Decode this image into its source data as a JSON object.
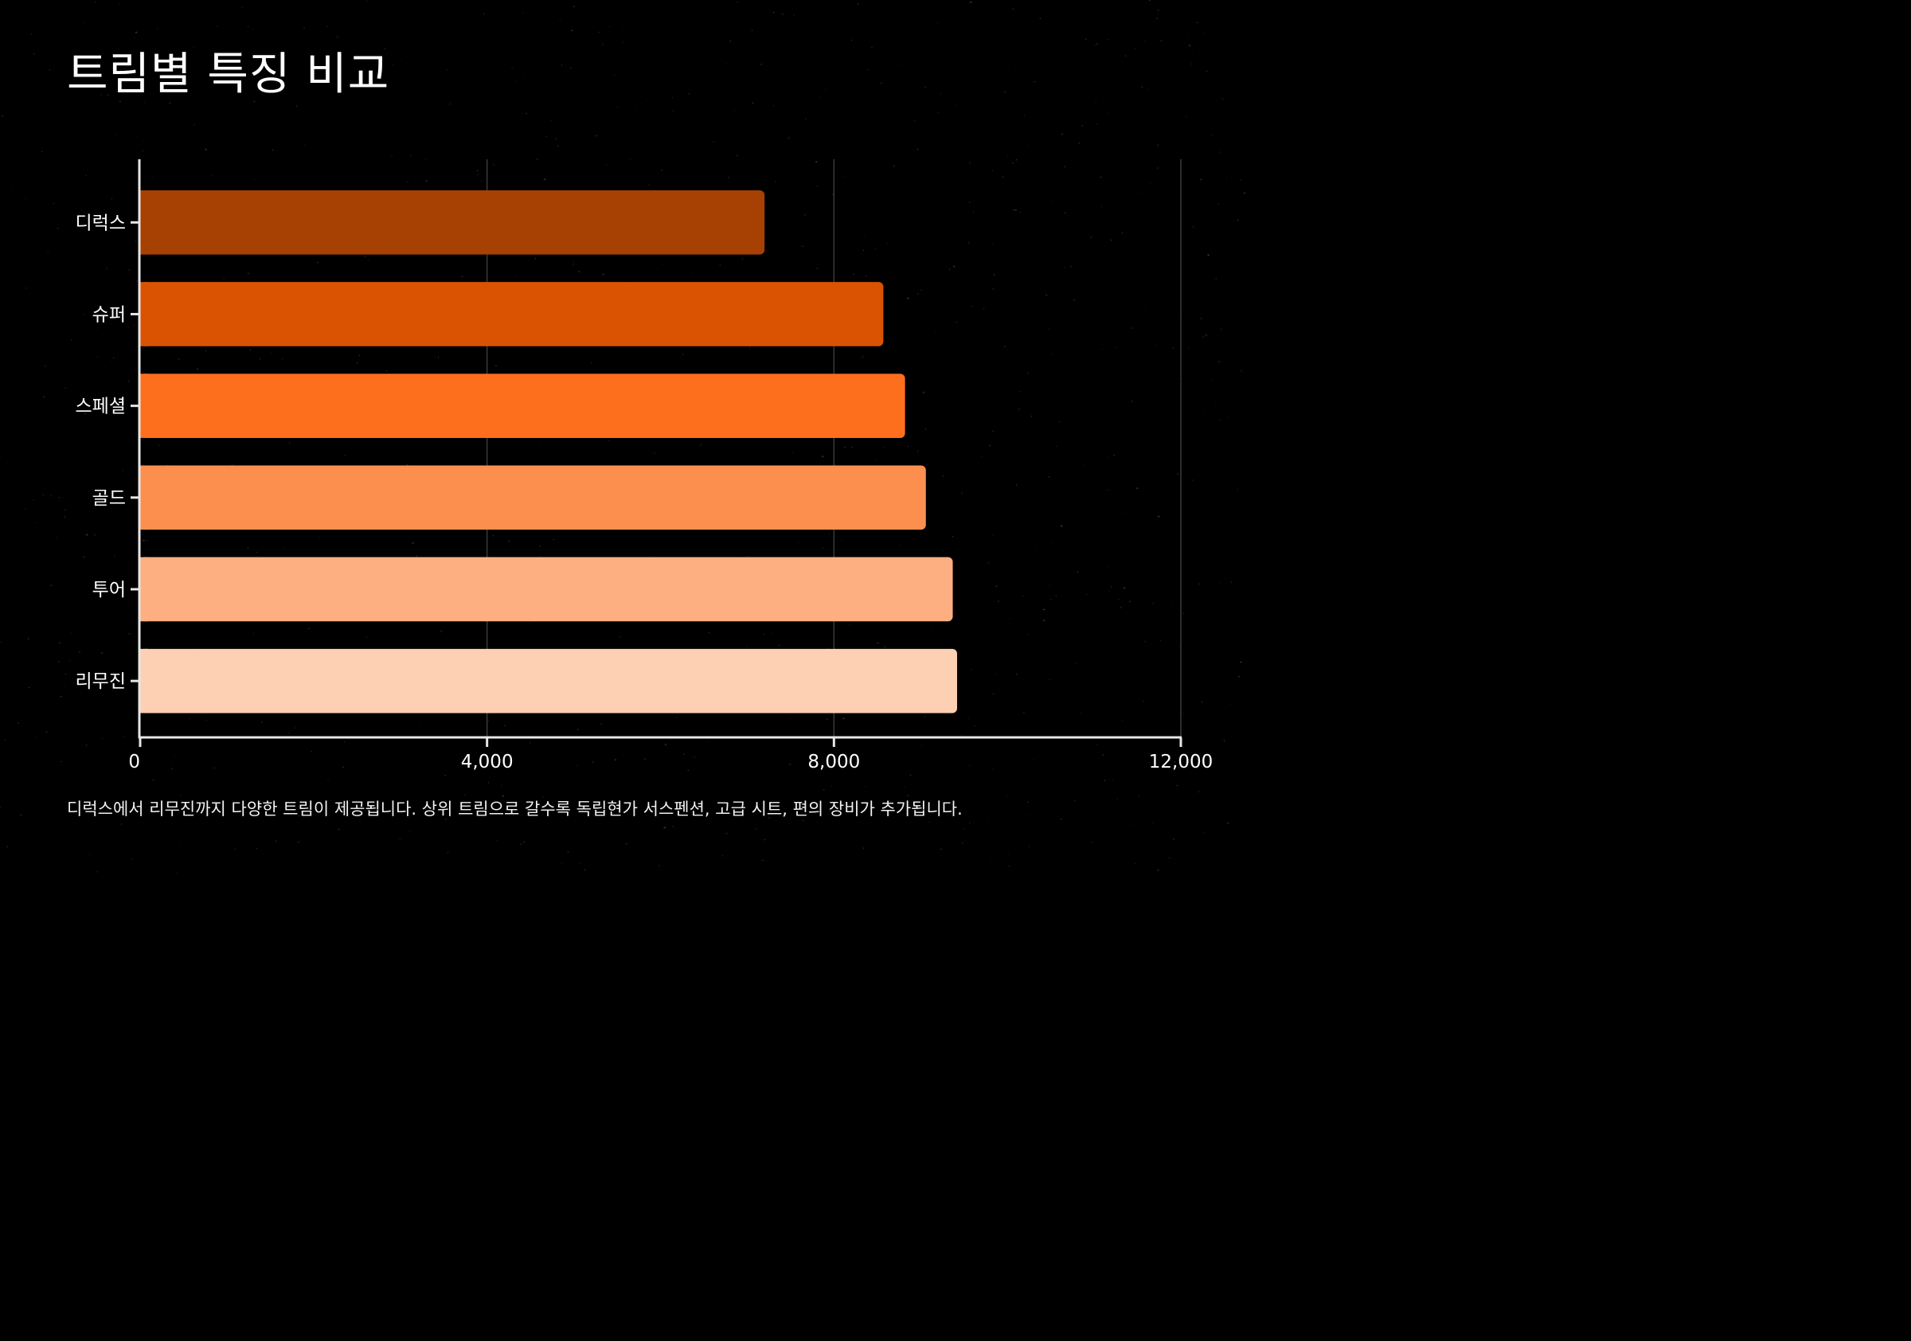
{
  "title": "트림별 특징 비교",
  "caption": "디럭스에서 리무진까지 다양한 트림이 제공됩니다. 상위 트림으로 갈수록 독립현가 서스펜션, 고급 시트, 편의 장비가 추가됩니다.",
  "colors": {
    "background": "#000000",
    "axis": "#e6e6e6",
    "grid": "#3a3a3a",
    "text": "#ffffff"
  },
  "chart_data": {
    "type": "bar",
    "orientation": "horizontal",
    "categories": [
      "디럭스",
      "슈퍼",
      "스페셜",
      "골드",
      "투어",
      "리무진"
    ],
    "values": [
      7200,
      8570,
      8820,
      9060,
      9370,
      9420
    ],
    "colors": [
      "#a64003",
      "#d95303",
      "#fd6f1c",
      "#fd8f4e",
      "#fdaf81",
      "#fed0b3"
    ],
    "xlim": [
      0,
      12000
    ],
    "xticks": [
      0,
      4000,
      8000,
      12000
    ],
    "xtick_labels": [
      "0",
      "4,000",
      "8,000",
      "12,000"
    ],
    "grid": "vertical",
    "legend": "none"
  }
}
